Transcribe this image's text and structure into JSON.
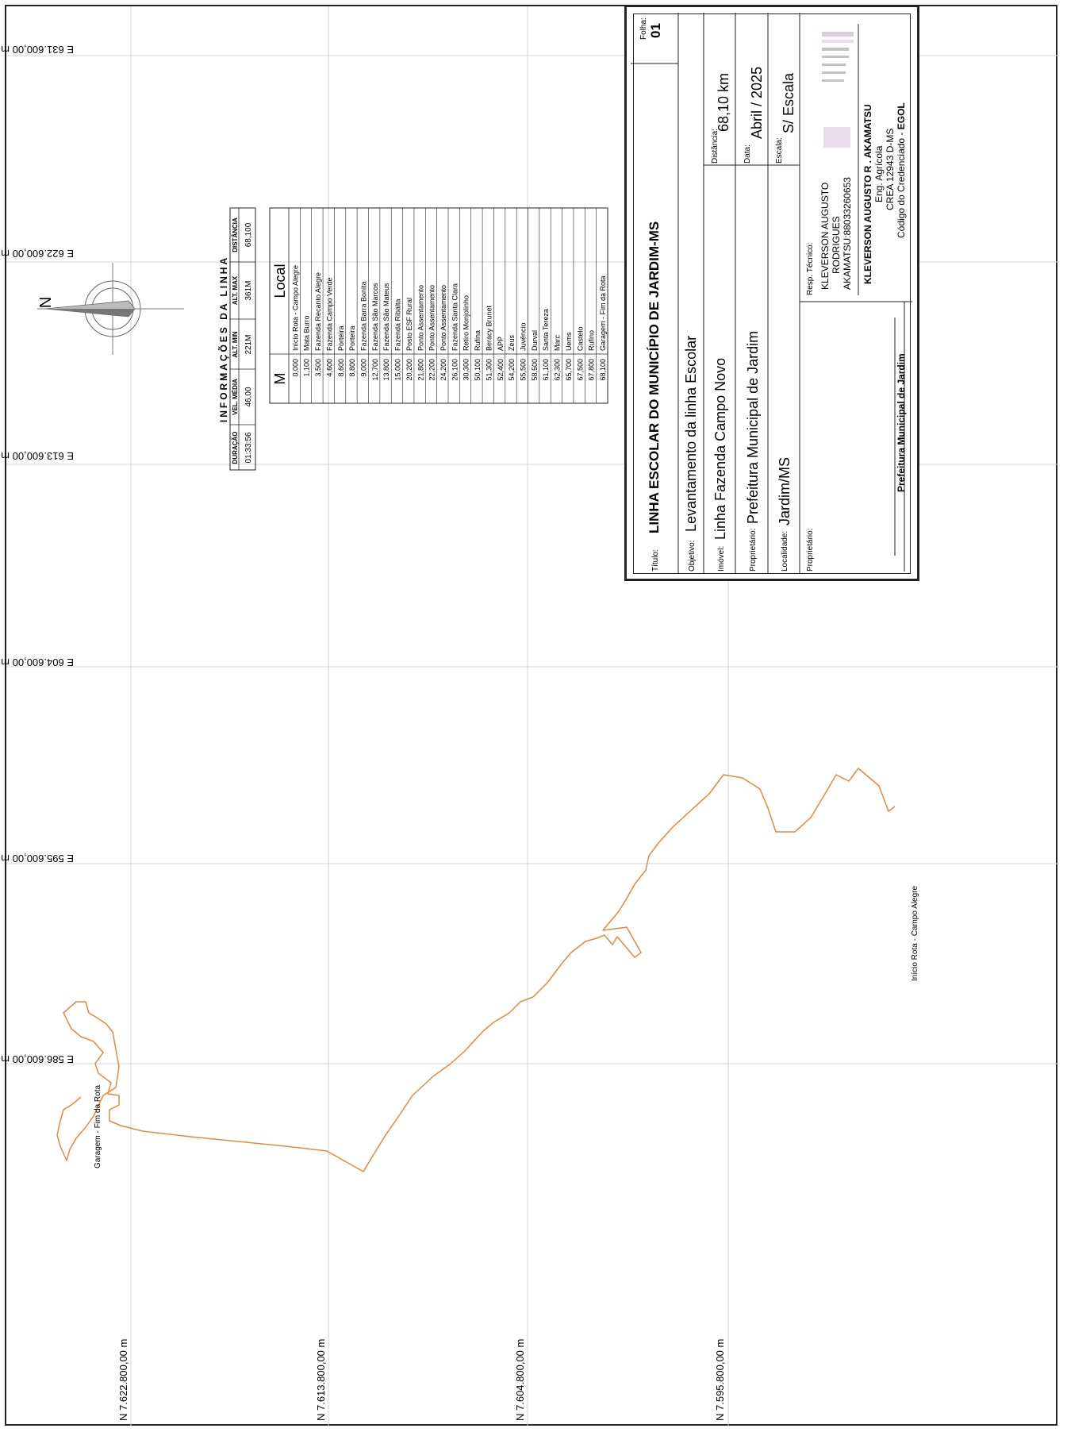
{
  "grid_labels": {
    "east": [
      "E 631.600,00 m",
      "E 622.600,00 m",
      "E 613.600,00 m",
      "E 604.600,00 m",
      "E 595.600,00 m",
      "E 586.600,00 m"
    ],
    "north": [
      "N 7.622.800,00 m",
      "N 7.613.800,00 m",
      "N 7.604.800,00 m",
      "N 7.595.800,00 m"
    ]
  },
  "north_arrow": {
    "letter": "N"
  },
  "route": {
    "start_label": "Início Rota - Campo Alegre",
    "end_label": "Garagem - Fim da Rota",
    "color": "#e58a3a"
  },
  "info_table": {
    "title": "INFORMAÇÕES DA LINHA",
    "headers": [
      "DURAÇÃO",
      "VEL. MÉDIA",
      "ALT. MIN",
      "ALT. MAX",
      "DISTÂNCIA"
    ],
    "values": [
      "01:33:56",
      "46,00",
      "221M",
      "361M",
      "68,100"
    ]
  },
  "stops_table": {
    "headers": [
      "M",
      "Local"
    ],
    "rows": [
      [
        "0,000",
        "Início Rota - Campo Alegre"
      ],
      [
        "1,100",
        "Mata Burro"
      ],
      [
        "3,500",
        "Fazenda Recanto Alegre"
      ],
      [
        "4,600",
        "Fazenda Campo Verde"
      ],
      [
        "8,600",
        "Porteira"
      ],
      [
        "8,800",
        "Porteira"
      ],
      [
        "9,000",
        "Fazenda Barra Bonita"
      ],
      [
        "12,700",
        "Fazenda São Marcos"
      ],
      [
        "13,800",
        "Fazenda São Mateus"
      ],
      [
        "15,000",
        "Fazenda Ribalta"
      ],
      [
        "20,200",
        "Posto ESF Rural"
      ],
      [
        "21,800",
        "Ponto Assentamento"
      ],
      [
        "22,200",
        "Ponto Assentamento"
      ],
      [
        "24,200",
        "Ponto Assentamento"
      ],
      [
        "26,100",
        "Fazenda Santa Clara"
      ],
      [
        "30,300",
        "Retiro Monjolinho"
      ],
      [
        "50,100",
        "Rufina"
      ],
      [
        "51,300",
        "Beracy Brunet"
      ],
      [
        "52,400",
        "APP"
      ],
      [
        "54,200",
        "Zeus"
      ],
      [
        "55,500",
        "Juvêncio"
      ],
      [
        "58,500",
        "Durval"
      ],
      [
        "61,100",
        "Santa Tereza"
      ],
      [
        "62,300",
        "Marc"
      ],
      [
        "65,700",
        "Uems"
      ],
      [
        "67,500",
        "Castelo"
      ],
      [
        "67,800",
        "Rufino"
      ],
      [
        "68,100",
        "Garagem - Fim da Rota"
      ]
    ]
  },
  "title_block": {
    "titulo_label": "Título:",
    "titulo": "LINHA ESCOLAR DO MUNICÍPIO DE JARDIM-MS",
    "folha_label": "Folha:",
    "folha": "01",
    "objetivo_label": "Objetivo:",
    "objetivo": "Levantamento da linha Escolar",
    "imovel_label": "Imóvel:",
    "imovel": "Linha Fazenda Campo Novo",
    "distancia_label": "Distância:",
    "distancia": "68,10 km",
    "proprietario_label": "Proprietário:",
    "proprietario": "Prefeitura Municipal de Jardim",
    "data_label": "Data:",
    "data": "Abril / 2025",
    "localidade_label": "Localidade:",
    "localidade": "Jardim/MS",
    "escala_label": "Escala:",
    "escala": "S/ Escala",
    "proprietario2_label": "Proprietário:",
    "proprietario2": "Prefeitura Municipal de Jardim",
    "resp_label": "Resp. Técnico:",
    "resp_lines": [
      "KLEVERSON AUGUSTO",
      "RODRIGUES",
      "AKAMATSU:88033260653"
    ],
    "resp_name": "KLEVERSON AUGUSTO R . AKAMATSU",
    "resp_role": "Eng. Agrícola",
    "resp_crea": "CREA 12943 D-MS",
    "resp_code_prefix": "Código do Credenciado - ",
    "resp_code": "EGOL"
  }
}
